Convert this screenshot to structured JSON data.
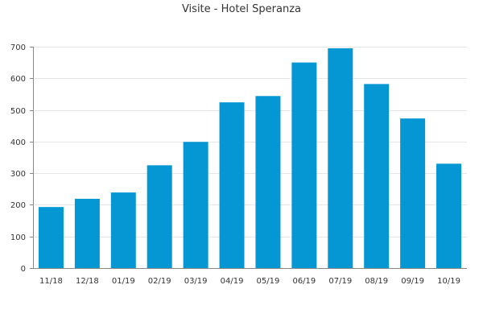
{
  "chart_data": {
    "type": "bar",
    "title": "Visite - Hotel Speranza",
    "xlabel": "",
    "ylabel": "",
    "categories": [
      "11/18",
      "12/18",
      "01/19",
      "02/19",
      "03/19",
      "04/19",
      "05/19",
      "06/19",
      "07/19",
      "08/19",
      "09/19",
      "10/19"
    ],
    "values": [
      193,
      219,
      239,
      325,
      399,
      524,
      544,
      650,
      695,
      582,
      473,
      330
    ],
    "ylim": [
      0,
      700
    ],
    "yticks": [
      0,
      100,
      200,
      300,
      400,
      500,
      600,
      700
    ],
    "grid": true,
    "legend": "none",
    "bar_color": "#0497d4",
    "grid_color": "#e6e6e6",
    "axis_color": "#888888"
  }
}
